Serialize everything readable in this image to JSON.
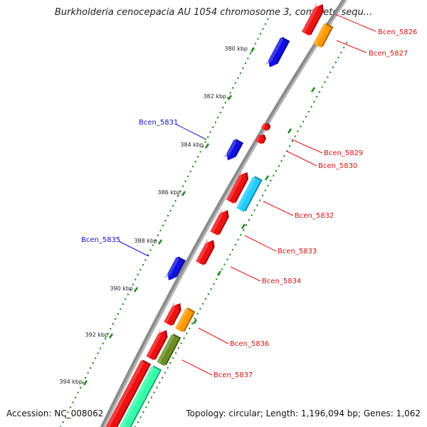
{
  "title": "Burkholderia cenocepacia AU 1054 chromosome 3, complete sequ...",
  "footer": {
    "accession": "Accession: NC_008062",
    "summary": "Topology: circular; Length: 1,196,094 bp; Genes: 1,062"
  },
  "tick_labels": [
    "380 kbp",
    "382 kbp",
    "384 kbp",
    "386 kbp",
    "388 kbp",
    "390 kbp",
    "392 kbp",
    "394 kbp"
  ],
  "gene_labels": {
    "reverse": [
      "Bcen_5831",
      "Bcen_5835"
    ],
    "forward": [
      "Bcen_5826",
      "Bcen_5827",
      "Bcen_5829",
      "Bcen_5830",
      "Bcen_5832",
      "Bcen_5833",
      "Bcen_5834",
      "Bcen_5836",
      "Bcen_5837"
    ]
  },
  "colors": {
    "backbone": "#8c8c8c",
    "reverse_gene": "#1010e0",
    "forward_gene": "#ee1111",
    "orange_gene": "#ff9900",
    "cyan_gene": "#22ccff",
    "olive_gene": "#6b8e23",
    "aqua_gene": "#33ffaa",
    "forward_label": "#dd1111",
    "reverse_label": "#1111cc",
    "tick": "#1e8a1e"
  }
}
